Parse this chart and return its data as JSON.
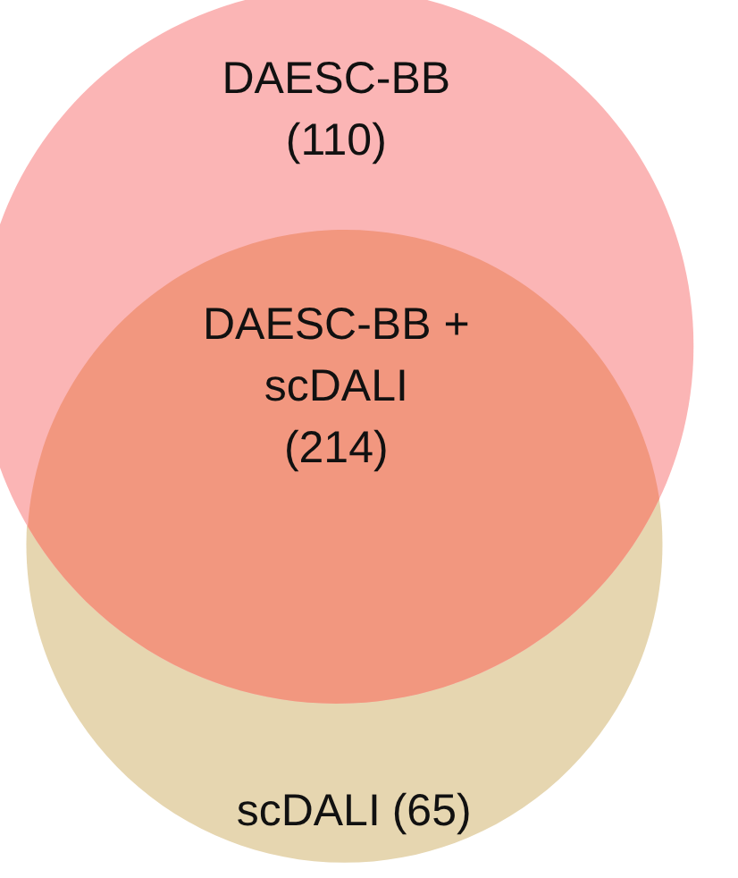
{
  "chart_data": {
    "type": "other",
    "categories": [
      "DAESC-BB",
      "DAESC-BB + scDALI",
      "scDALI"
    ],
    "values": [
      110,
      214,
      65
    ],
    "value_labels": [
      "(110)",
      "(214)",
      "(65)"
    ],
    "colors": [
      "#fbb5b5",
      "#f2977f",
      "#e6d6b0"
    ]
  }
}
